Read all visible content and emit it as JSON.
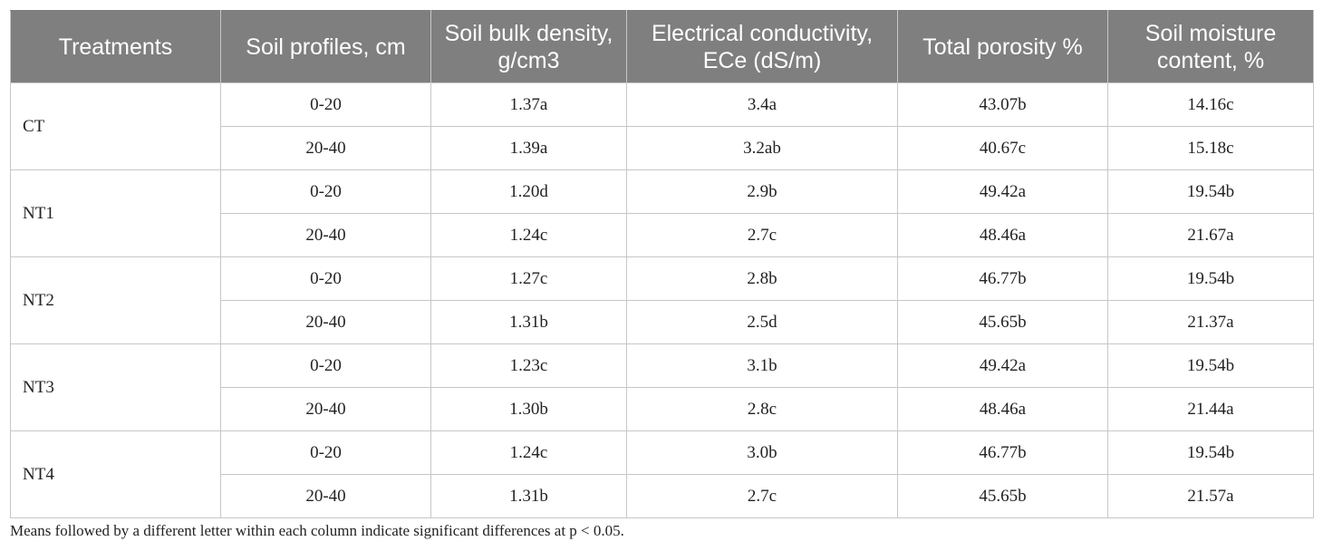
{
  "table": {
    "headers": [
      "Treatments",
      "Soil profiles, cm",
      "Soil bulk density, g/cm3",
      "Electrical conductivity, ECe (dS/m)",
      "Total porosity %",
      "Soil moisture content, %"
    ],
    "groups": [
      {
        "treatment": "CT",
        "rows": [
          [
            "0-20",
            "1.37a",
            "3.4a",
            "43.07b",
            "14.16c"
          ],
          [
            "20-40",
            "1.39a",
            "3.2ab",
            "40.67c",
            "15.18c"
          ]
        ]
      },
      {
        "treatment": "NT1",
        "rows": [
          [
            "0-20",
            "1.20d",
            "2.9b",
            "49.42a",
            "19.54b"
          ],
          [
            "20-40",
            "1.24c",
            "2.7c",
            "48.46a",
            "21.67a"
          ]
        ]
      },
      {
        "treatment": "NT2",
        "rows": [
          [
            "0-20",
            "1.27c",
            "2.8b",
            "46.77b",
            "19.54b"
          ],
          [
            "20-40",
            "1.31b",
            "2.5d",
            "45.65b",
            "21.37a"
          ]
        ]
      },
      {
        "treatment": "NT3",
        "rows": [
          [
            "0-20",
            "1.23c",
            "3.1b",
            "49.42a",
            "19.54b"
          ],
          [
            "20-40",
            "1.30b",
            "2.8c",
            "48.46a",
            "21.44a"
          ]
        ]
      },
      {
        "treatment": "NT4",
        "rows": [
          [
            "0-20",
            "1.24c",
            "3.0b",
            "46.77b",
            "19.54b"
          ],
          [
            "20-40",
            "1.31b",
            "2.7c",
            "45.65b",
            "21.57a"
          ]
        ]
      }
    ]
  },
  "footnote": "Means followed by a different letter within each column indicate significant differences at p < 0.05."
}
